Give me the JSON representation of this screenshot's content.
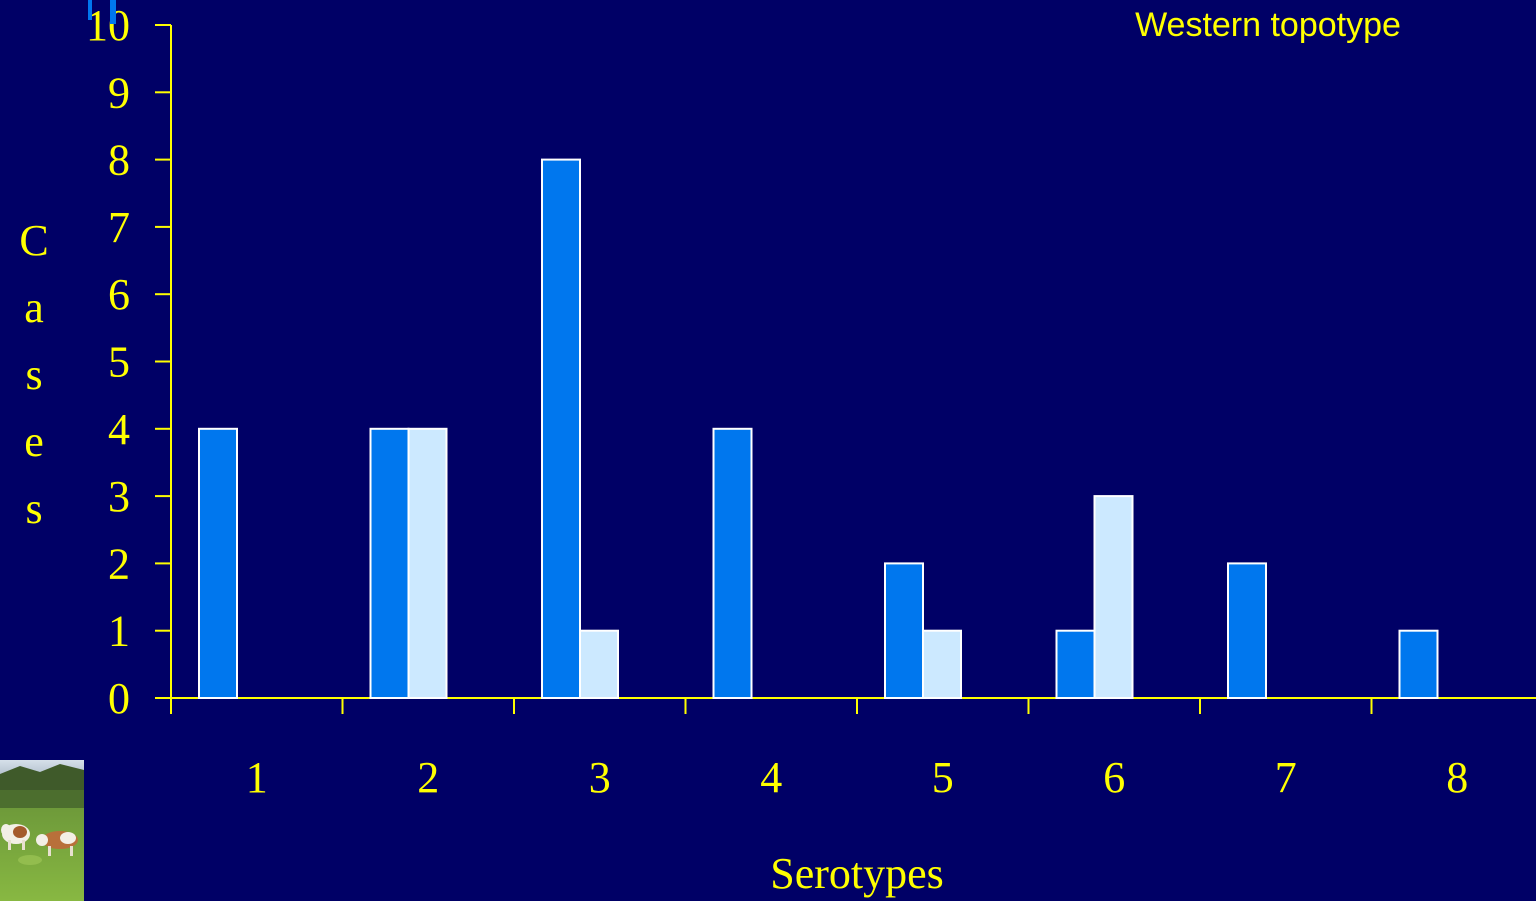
{
  "colors": {
    "background": "#000066",
    "axis": "#ffff00",
    "text": "#ffff00",
    "series_dark": "#0077ee",
    "series_light": "#cce9ff",
    "bar_outline": "#ffffff"
  },
  "chart_data": {
    "type": "bar",
    "title": "",
    "subtitle": "Western topotype",
    "xlabel": "Serotypes",
    "ylabel": "Cases",
    "categories": [
      "1",
      "2",
      "3",
      "4",
      "5",
      "6",
      "7",
      "8"
    ],
    "series": [
      {
        "values": [
          4,
          4,
          8,
          4,
          2,
          1,
          2,
          1
        ],
        "color": "#0077ee"
      },
      {
        "values": [
          0,
          4,
          1,
          0,
          1,
          3,
          0,
          0
        ],
        "color": "#cce9ff"
      }
    ],
    "ylim": [
      0,
      10
    ],
    "yticks": [
      "0",
      "1",
      "2",
      "3",
      "4",
      "5",
      "6",
      "7",
      "8",
      "9",
      "10"
    ],
    "grid": false,
    "legend": "none"
  },
  "decor": {
    "photo_icon": "cows-in-meadow-photo"
  }
}
